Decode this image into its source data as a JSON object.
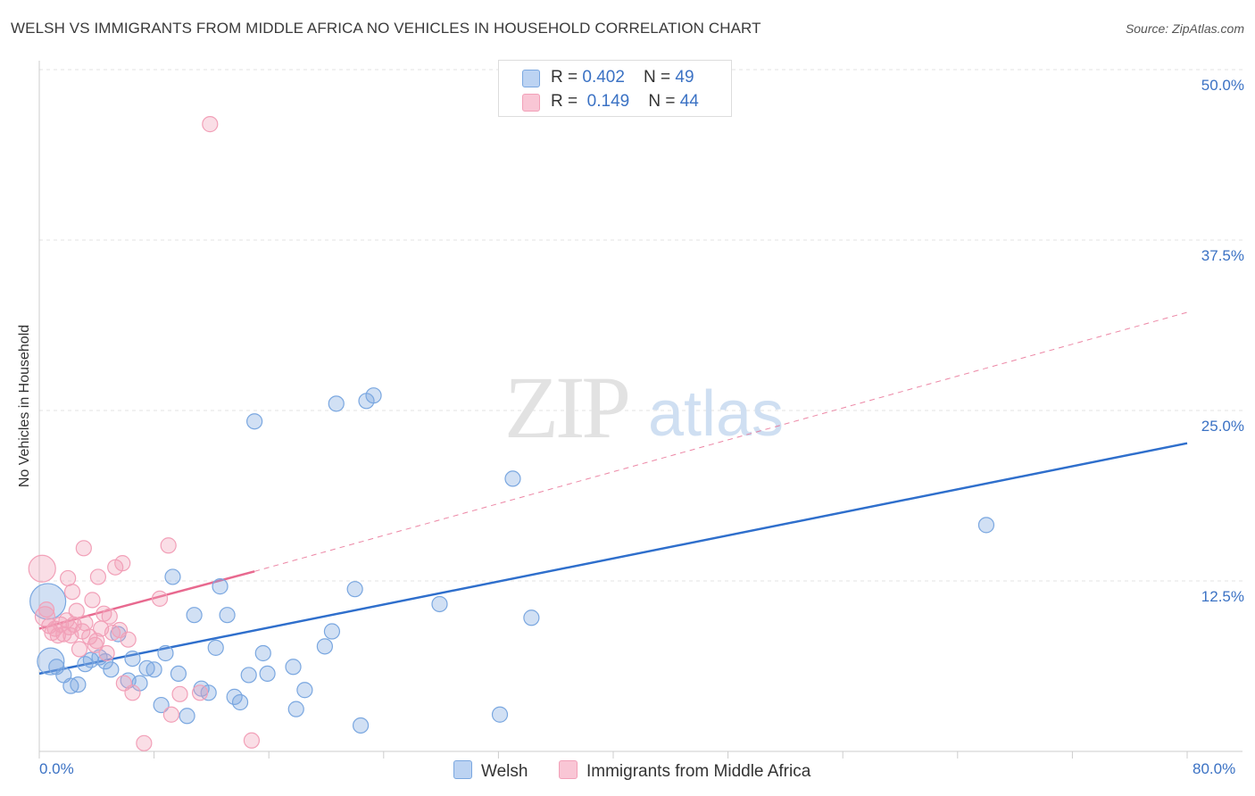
{
  "title": "WELSH VS IMMIGRANTS FROM MIDDLE AFRICA NO VEHICLES IN HOUSEHOLD CORRELATION CHART",
  "source": "Source: ZipAtlas.com",
  "watermark": {
    "zip": "ZIP",
    "atlas": "atlas"
  },
  "legend": {
    "rows": [
      {
        "r_label": "R = ",
        "r_value": "0.402",
        "n_label": "N = ",
        "n_value": "49"
      },
      {
        "r_label": "R = ",
        "r_value": "0.149",
        "n_label": "N = ",
        "n_value": "44"
      }
    ]
  },
  "chart_data": {
    "type": "scatter",
    "ylabel": "No Vehicles in Household",
    "xlim": [
      0,
      80
    ],
    "ylim": [
      0,
      50
    ],
    "x_tick_labels": [
      "0.0%",
      "80.0%"
    ],
    "y_ticks": [
      12.5,
      25.0,
      37.5,
      50.0
    ],
    "y_tick_labels": [
      "12.5%",
      "25.0%",
      "37.5%",
      "50.0%"
    ],
    "grid": true,
    "colors": {
      "welsh": "#7aa7e0",
      "welsh_line": "#2f6fcc",
      "africa": "#f2a0b8",
      "africa_line": "#e8698f"
    },
    "series": [
      {
        "name": "Welsh",
        "trend": {
          "x": [
            0,
            80
          ],
          "y": [
            5.7,
            22.6
          ]
        },
        "points": [
          [
            0.6,
            11.0
          ],
          [
            0.8,
            6.6
          ],
          [
            1.2,
            6.2
          ],
          [
            1.7,
            5.6
          ],
          [
            2.2,
            4.8
          ],
          [
            2.7,
            4.9
          ],
          [
            3.2,
            6.4
          ],
          [
            3.6,
            6.7
          ],
          [
            4.2,
            6.9
          ],
          [
            4.6,
            6.6
          ],
          [
            5.0,
            6.0
          ],
          [
            5.5,
            8.6
          ],
          [
            6.2,
            5.2
          ],
          [
            6.5,
            6.8
          ],
          [
            7.0,
            5.0
          ],
          [
            7.5,
            6.1
          ],
          [
            8.0,
            6.0
          ],
          [
            8.5,
            3.4
          ],
          [
            8.8,
            7.2
          ],
          [
            9.3,
            12.8
          ],
          [
            9.7,
            5.7
          ],
          [
            10.3,
            2.6
          ],
          [
            10.8,
            10.0
          ],
          [
            11.3,
            4.6
          ],
          [
            11.8,
            4.3
          ],
          [
            12.3,
            7.6
          ],
          [
            12.6,
            12.1
          ],
          [
            13.1,
            10.0
          ],
          [
            13.6,
            4.0
          ],
          [
            14.0,
            3.6
          ],
          [
            14.6,
            5.6
          ],
          [
            15.0,
            24.2
          ],
          [
            15.6,
            7.2
          ],
          [
            15.9,
            5.7
          ],
          [
            17.7,
            6.2
          ],
          [
            17.9,
            3.1
          ],
          [
            18.5,
            4.5
          ],
          [
            19.9,
            7.7
          ],
          [
            20.4,
            8.8
          ],
          [
            20.7,
            25.5
          ],
          [
            22.0,
            11.9
          ],
          [
            22.4,
            1.9
          ],
          [
            22.8,
            25.7
          ],
          [
            23.3,
            26.1
          ],
          [
            27.9,
            10.8
          ],
          [
            32.1,
            2.7
          ],
          [
            33.0,
            20.0
          ],
          [
            34.3,
            9.8
          ],
          [
            66.0,
            16.6
          ]
        ]
      },
      {
        "name": "Immigrants from Middle Africa",
        "trend": {
          "x": [
            0,
            15
          ],
          "y": [
            9.0,
            13.2
          ]
        },
        "trend_extension": {
          "x": [
            15,
            80
          ],
          "y": [
            13.2,
            32.2
          ]
        },
        "points": [
          [
            0.2,
            13.4
          ],
          [
            0.4,
            9.9
          ],
          [
            0.5,
            10.4
          ],
          [
            0.7,
            9.2
          ],
          [
            0.9,
            8.7
          ],
          [
            1.1,
            9.0
          ],
          [
            1.3,
            8.5
          ],
          [
            1.5,
            9.3
          ],
          [
            1.7,
            8.6
          ],
          [
            1.9,
            9.6
          ],
          [
            2.1,
            9.1
          ],
          [
            2.0,
            12.7
          ],
          [
            2.2,
            8.5
          ],
          [
            2.4,
            9.3
          ],
          [
            2.6,
            10.3
          ],
          [
            2.3,
            11.7
          ],
          [
            2.8,
            7.5
          ],
          [
            3.0,
            8.8
          ],
          [
            3.2,
            9.4
          ],
          [
            3.1,
            14.9
          ],
          [
            3.5,
            8.4
          ],
          [
            3.7,
            11.1
          ],
          [
            3.9,
            7.8
          ],
          [
            4.1,
            12.8
          ],
          [
            4.0,
            8.1
          ],
          [
            4.3,
            9.0
          ],
          [
            4.5,
            10.1
          ],
          [
            4.7,
            7.2
          ],
          [
            4.9,
            9.9
          ],
          [
            5.1,
            8.7
          ],
          [
            5.3,
            13.5
          ],
          [
            5.6,
            8.9
          ],
          [
            5.8,
            13.8
          ],
          [
            5.9,
            5.0
          ],
          [
            6.2,
            8.2
          ],
          [
            6.5,
            4.3
          ],
          [
            7.3,
            0.6
          ],
          [
            8.4,
            11.2
          ],
          [
            9.0,
            15.1
          ],
          [
            9.2,
            2.7
          ],
          [
            9.8,
            4.2
          ],
          [
            11.2,
            4.3
          ],
          [
            11.9,
            46.0
          ],
          [
            14.8,
            0.8
          ]
        ]
      }
    ]
  }
}
